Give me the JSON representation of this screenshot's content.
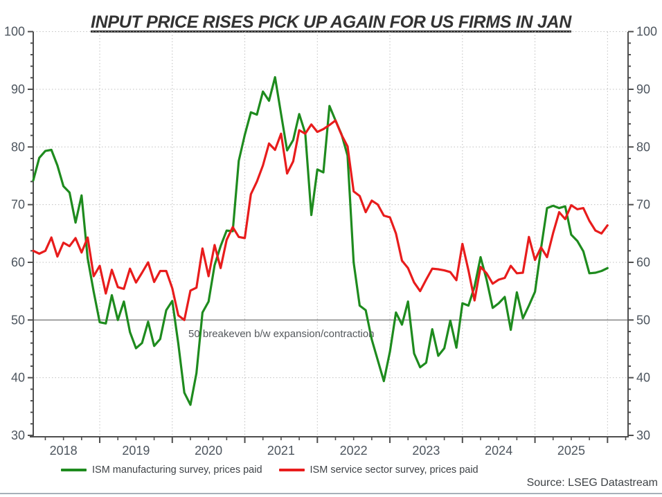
{
  "title": "INPUT PRICE RISES PICK UP AGAIN FOR US FIRMS IN JAN",
  "source": "Source: LSEG Datastream",
  "annotation": "50 breakeven b/w expansion/contraction",
  "colors": {
    "manufacturing": "#1e8b1e",
    "services": "#e81c1c",
    "grid": "#bfbfbf",
    "ref_line": "#8c8c8c",
    "spine": "#4d4d4d",
    "tick_label": "#4d555e",
    "annotation_text": "#54585c"
  },
  "chart_data": {
    "type": "line",
    "title": "INPUT PRICE RISES PICK UP AGAIN FOR US FIRMS IN JAN",
    "frequency": "monthly",
    "x_start": "2018-02",
    "x_end": "2026-01",
    "x_year_labels": [
      "2018",
      "2019",
      "2020",
      "2021",
      "2022",
      "2023",
      "2024",
      "2025"
    ],
    "ylim": [
      30,
      100
    ],
    "y_major_ticks": [
      30,
      40,
      50,
      60,
      70,
      80,
      90,
      100
    ],
    "y_minor_step": 2,
    "grid": "dotted, vertical at each January, horizontal at major ticks",
    "legend_position": "bottom-left",
    "reference_line": {
      "value": 50,
      "label": "50 breakeven b/w expansion/contraction"
    },
    "series": [
      {
        "name": "ISM manufacturing survey, prices paid",
        "color": "#1e8b1e",
        "values": [
          74.2,
          78.1,
          79.3,
          79.5,
          76.8,
          73.2,
          72.1,
          66.9,
          71.6,
          60.7,
          54.9,
          49.6,
          49.4,
          54.3,
          50.0,
          53.2,
          47.9,
          45.1,
          46.0,
          49.7,
          45.5,
          46.7,
          51.7,
          53.3,
          45.9,
          37.4,
          35.3,
          40.8,
          51.3,
          53.2,
          59.5,
          62.8,
          65.5,
          65.4,
          77.6,
          82.1,
          86.0,
          85.6,
          89.6,
          88.0,
          92.1,
          85.7,
          79.4,
          81.2,
          85.7,
          82.4,
          68.2,
          76.1,
          75.6,
          87.1,
          84.6,
          82.2,
          78.5,
          60.0,
          52.5,
          51.7,
          46.6,
          43.0,
          39.4,
          44.5,
          51.3,
          49.2,
          53.2,
          44.2,
          41.8,
          42.6,
          48.4,
          43.8,
          45.1,
          49.9,
          45.2,
          52.9,
          52.5,
          55.8,
          60.9,
          57.0,
          52.1,
          52.9,
          54.0,
          48.3,
          54.8,
          50.3,
          52.5,
          54.9,
          62.4,
          69.4,
          69.8,
          69.4,
          69.7,
          64.8,
          63.7,
          61.9,
          58.1,
          58.2,
          58.5,
          59.0
        ]
      },
      {
        "name": "ISM service sector survey, prices paid",
        "color": "#e81c1c",
        "values": [
          62.0,
          61.5,
          62.0,
          64.3,
          61.0,
          63.4,
          62.8,
          64.2,
          61.7,
          64.3,
          57.6,
          59.4,
          54.6,
          58.7,
          55.7,
          55.4,
          58.9,
          56.5,
          58.2,
          60.0,
          56.6,
          58.5,
          58.5,
          55.5,
          50.8,
          50.0,
          55.1,
          55.6,
          62.4,
          57.6,
          63.0,
          59.0,
          63.9,
          66.1,
          64.4,
          64.2,
          71.8,
          74.0,
          76.8,
          80.6,
          79.5,
          82.3,
          75.4,
          77.5,
          82.9,
          82.3,
          83.9,
          82.6,
          83.1,
          83.8,
          84.6,
          82.1,
          80.1,
          72.3,
          71.5,
          68.7,
          70.7,
          70.0,
          68.1,
          67.8,
          65.0,
          60.3,
          59.0,
          56.5,
          55.0,
          57.0,
          58.9,
          58.8,
          58.6,
          58.3,
          56.9,
          63.2,
          58.6,
          53.4,
          59.2,
          58.1,
          56.3,
          57.0,
          57.3,
          59.4,
          58.1,
          58.2,
          64.4,
          60.4,
          62.6,
          60.9,
          65.1,
          68.7,
          67.5,
          69.9,
          69.2,
          69.4,
          67.2,
          65.5,
          65.0,
          66.4
        ]
      }
    ]
  }
}
